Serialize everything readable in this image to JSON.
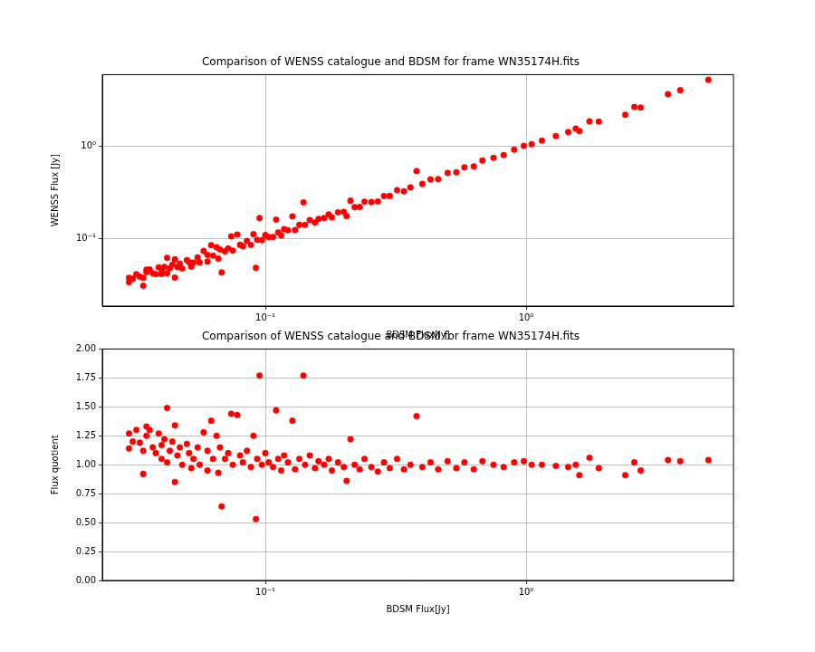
{
  "chart_data": [
    {
      "type": "scatter",
      "title": "Comparison of WENSS catalogue and BDSM for frame WN35174H.fits",
      "x_label": "BDSM Flux[Jy]",
      "y_label": "WENSS Flux [Jy]",
      "color": "#ff0000",
      "marker": "circle",
      "log": true,
      "grid": true,
      "xlim": [
        0.0237,
        6.24
      ],
      "ylim": [
        0.0189,
        5.92
      ],
      "xticks": [
        {
          "value": 0.1,
          "label": "10⁻¹"
        },
        {
          "value": 1,
          "label": "10⁰"
        }
      ],
      "yticks": [
        {
          "value": 0.1,
          "label": "10⁻¹"
        },
        {
          "value": 1,
          "label": "10⁰"
        }
      ],
      "x": [
        0.03,
        0.03,
        0.031,
        0.032,
        0.033,
        0.034,
        0.034,
        0.035,
        0.035,
        0.036,
        0.037,
        0.038,
        0.039,
        0.04,
        0.04,
        0.041,
        0.042,
        0.042,
        0.043,
        0.044,
        0.045,
        0.045,
        0.046,
        0.047,
        0.048,
        0.05,
        0.051,
        0.052,
        0.053,
        0.055,
        0.056,
        0.058,
        0.06,
        0.06,
        0.062,
        0.063,
        0.065,
        0.066,
        0.067,
        0.068,
        0.07,
        0.072,
        0.074,
        0.075,
        0.078,
        0.08,
        0.082,
        0.085,
        0.088,
        0.09,
        0.092,
        0.093,
        0.095,
        0.097,
        0.1,
        0.103,
        0.107,
        0.11,
        0.112,
        0.115,
        0.118,
        0.122,
        0.127,
        0.13,
        0.135,
        0.14,
        0.142,
        0.148,
        0.155,
        0.16,
        0.168,
        0.175,
        0.18,
        0.19,
        0.2,
        0.205,
        0.212,
        0.22,
        0.23,
        0.24,
        0.255,
        0.27,
        0.285,
        0.3,
        0.32,
        0.34,
        0.36,
        0.38,
        0.4,
        0.43,
        0.46,
        0.5,
        0.54,
        0.58,
        0.63,
        0.68,
        0.75,
        0.82,
        0.9,
        0.98,
        1.05,
        1.15,
        1.3,
        1.45,
        1.55,
        1.6,
        1.75,
        1.9,
        2.4,
        2.6,
        2.75,
        3.5,
        3.9,
        5.0
      ],
      "values": [
        0.0381,
        0.0342,
        0.0372,
        0.0416,
        0.0393,
        0.0381,
        0.0313,
        0.0466,
        0.0438,
        0.0468,
        0.0426,
        0.0418,
        0.0495,
        0.0468,
        0.042,
        0.05,
        0.0626,
        0.0428,
        0.0482,
        0.0528,
        0.0603,
        0.0383,
        0.0497,
        0.0541,
        0.048,
        0.059,
        0.0561,
        0.0504,
        0.0557,
        0.0633,
        0.056,
        0.0742,
        0.0672,
        0.057,
        0.0856,
        0.0662,
        0.0813,
        0.0614,
        0.0771,
        0.0435,
        0.0735,
        0.0792,
        0.1066,
        0.075,
        0.1115,
        0.0864,
        0.0836,
        0.0952,
        0.0862,
        0.1125,
        0.0488,
        0.0977,
        0.168,
        0.097,
        0.11,
        0.105,
        0.1049,
        0.1617,
        0.1176,
        0.1093,
        0.1274,
        0.1244,
        0.1753,
        0.1248,
        0.1418,
        0.2478,
        0.142,
        0.1598,
        0.1504,
        0.1648,
        0.168,
        0.1838,
        0.171,
        0.1938,
        0.196,
        0.1763,
        0.2586,
        0.22,
        0.2208,
        0.252,
        0.2499,
        0.2538,
        0.2907,
        0.291,
        0.336,
        0.3264,
        0.36,
        0.5396,
        0.392,
        0.4386,
        0.4416,
        0.515,
        0.5238,
        0.5916,
        0.6048,
        0.7004,
        0.75,
        0.8036,
        0.918,
        1.0094,
        1.05,
        1.15,
        1.287,
        1.421,
        1.55,
        1.456,
        1.855,
        1.843,
        2.184,
        2.652,
        2.6125,
        3.64,
        4.017,
        5.2
      ]
    },
    {
      "type": "scatter",
      "title": "Comparison of WENSS catalogue and BDSM for frame WN35174H.fits",
      "x_label": "BDSM Flux[Jy]",
      "y_label": "Flux quotient",
      "color": "#ff0000",
      "marker": "circle",
      "log": "x",
      "grid": true,
      "xlim": [
        0.0237,
        6.24
      ],
      "ylim": [
        0,
        2
      ],
      "xticks": [
        {
          "value": 0.1,
          "label": "10⁻¹"
        },
        {
          "value": 1,
          "label": "10⁰"
        }
      ],
      "yticks": [
        {
          "value": 0,
          "label": "0.00"
        },
        {
          "value": 0.25,
          "label": "0.25"
        },
        {
          "value": 0.5,
          "label": "0.50"
        },
        {
          "value": 0.75,
          "label": "0.75"
        },
        {
          "value": 1,
          "label": "1.00"
        },
        {
          "value": 1.25,
          "label": "1.25"
        },
        {
          "value": 1.5,
          "label": "1.50"
        },
        {
          "value": 1.75,
          "label": "1.75"
        },
        {
          "value": 2,
          "label": "2.00"
        }
      ],
      "x": [
        0.03,
        0.03,
        0.031,
        0.032,
        0.033,
        0.034,
        0.034,
        0.035,
        0.035,
        0.036,
        0.037,
        0.038,
        0.039,
        0.04,
        0.04,
        0.041,
        0.042,
        0.042,
        0.043,
        0.044,
        0.045,
        0.045,
        0.046,
        0.047,
        0.048,
        0.05,
        0.051,
        0.052,
        0.053,
        0.055,
        0.056,
        0.058,
        0.06,
        0.06,
        0.062,
        0.063,
        0.065,
        0.066,
        0.067,
        0.068,
        0.07,
        0.072,
        0.074,
        0.075,
        0.078,
        0.08,
        0.082,
        0.085,
        0.088,
        0.09,
        0.092,
        0.093,
        0.095,
        0.097,
        0.1,
        0.103,
        0.107,
        0.11,
        0.112,
        0.115,
        0.118,
        0.122,
        0.127,
        0.13,
        0.135,
        0.14,
        0.142,
        0.148,
        0.155,
        0.16,
        0.168,
        0.175,
        0.18,
        0.19,
        0.2,
        0.205,
        0.212,
        0.22,
        0.23,
        0.24,
        0.255,
        0.27,
        0.285,
        0.3,
        0.32,
        0.34,
        0.36,
        0.38,
        0.4,
        0.43,
        0.46,
        0.5,
        0.54,
        0.58,
        0.63,
        0.68,
        0.75,
        0.82,
        0.9,
        0.98,
        1.05,
        1.15,
        1.3,
        1.45,
        1.55,
        1.6,
        1.75,
        1.9,
        2.4,
        2.6,
        2.75,
        3.5,
        3.9,
        5.0
      ],
      "values": [
        1.27,
        1.14,
        1.2,
        1.3,
        1.19,
        1.12,
        0.92,
        1.33,
        1.25,
        1.3,
        1.15,
        1.1,
        1.27,
        1.17,
        1.05,
        1.22,
        1.49,
        1.02,
        1.12,
        1.2,
        1.34,
        0.85,
        1.08,
        1.15,
        1.0,
        1.18,
        1.1,
        0.97,
        1.05,
        1.15,
        1.0,
        1.28,
        1.12,
        0.95,
        1.38,
        1.05,
        1.25,
        0.93,
        1.15,
        0.64,
        1.05,
        1.1,
        1.44,
        1.0,
        1.43,
        1.08,
        1.02,
        1.12,
        0.98,
        1.25,
        0.53,
        1.05,
        1.77,
        1.0,
        1.1,
        1.02,
        0.98,
        1.47,
        1.05,
        0.95,
        1.08,
        1.02,
        1.38,
        0.96,
        1.05,
        1.77,
        1.0,
        1.08,
        0.97,
        1.03,
        1.0,
        1.05,
        0.95,
        1.02,
        0.98,
        0.86,
        1.22,
        1.0,
        0.96,
        1.05,
        0.98,
        0.94,
        1.02,
        0.97,
        1.05,
        0.96,
        1.0,
        1.42,
        0.98,
        1.02,
        0.96,
        1.03,
        0.97,
        1.02,
        0.96,
        1.03,
        1.0,
        0.98,
        1.02,
        1.03,
        1.0,
        1.0,
        0.99,
        0.98,
        1.0,
        0.91,
        1.06,
        0.97,
        0.91,
        1.02,
        0.95,
        1.04,
        1.03,
        1.04
      ]
    }
  ]
}
